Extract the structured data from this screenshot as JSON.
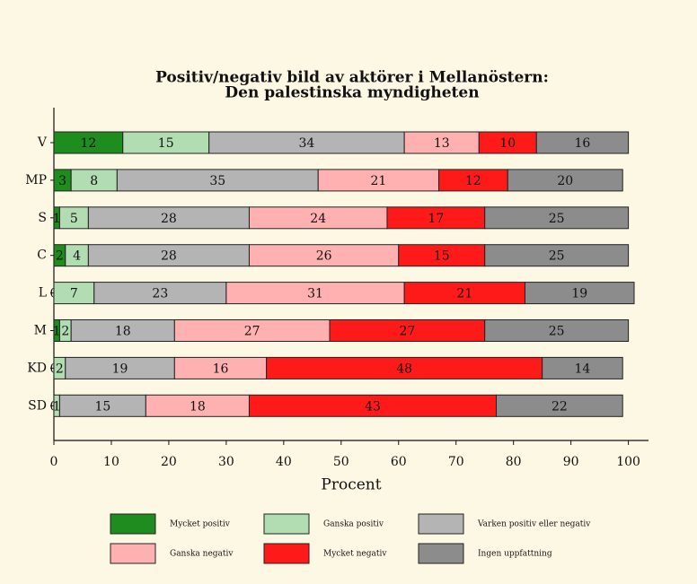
{
  "chart_data": {
    "type": "stacked-bar-horizontal",
    "title": [
      "Positiv/negativ bild av aktörer i Mellanöstern:",
      "Den palestinska myndigheten"
    ],
    "xlabel": "Procent",
    "categories": [
      "V",
      "MP",
      "S",
      "C",
      "L",
      "M",
      "KD",
      "SD"
    ],
    "series": [
      {
        "name": "Mycket positiv",
        "color": "#1e8c1e",
        "values": [
          12,
          3,
          1,
          2,
          0,
          1,
          0,
          0
        ]
      },
      {
        "name": "Ganska positiv",
        "color": "#b2dcb2",
        "values": [
          15,
          8,
          5,
          4,
          7,
          2,
          2,
          1
        ]
      },
      {
        "name": "Varken positiv eller negativ",
        "color": "#b4b4b4",
        "values": [
          34,
          35,
          28,
          28,
          23,
          18,
          19,
          15
        ]
      },
      {
        "name": "Ganska negativ",
        "color": "#ffb1b1",
        "values": [
          13,
          21,
          24,
          26,
          31,
          27,
          16,
          18
        ]
      },
      {
        "name": "Mycket negativ",
        "color": "#ff1a1a",
        "values": [
          10,
          12,
          17,
          15,
          21,
          27,
          48,
          43
        ]
      },
      {
        "name": "Ingen uppfattning",
        "color": "#8c8c8c",
        "values": [
          16,
          20,
          25,
          25,
          19,
          25,
          14,
          22
        ]
      }
    ],
    "xlim": [
      0,
      103.5
    ],
    "xticks": [
      0,
      10,
      20,
      30,
      40,
      50,
      60,
      70,
      80,
      90,
      100
    ]
  }
}
